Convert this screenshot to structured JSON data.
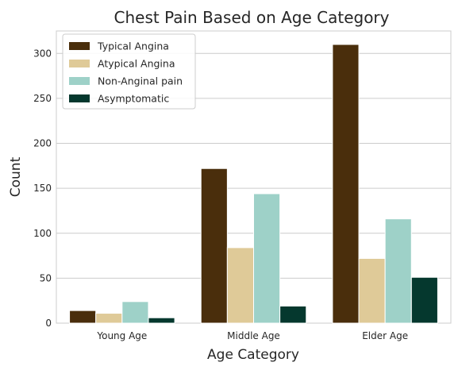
{
  "chart_data": {
    "type": "bar",
    "title": "Chest Pain Based on Age Category",
    "xlabel": "Age Category",
    "ylabel": "Count",
    "categories": [
      "Young Age",
      "Middle Age",
      "Elder Age"
    ],
    "yticks": [
      0,
      50,
      100,
      150,
      200,
      250,
      300
    ],
    "ylim": [
      0,
      325
    ],
    "grid": true,
    "legend_position": "top-left",
    "series": [
      {
        "name": "Typical Angina",
        "color": "#4a2e0c",
        "values": [
          14,
          172,
          310
        ]
      },
      {
        "name": "Atypical Angina",
        "color": "#dfca98",
        "values": [
          11,
          84,
          72
        ]
      },
      {
        "name": "Non-Anginal pain",
        "color": "#9ed1c8",
        "values": [
          24,
          144,
          116
        ]
      },
      {
        "name": "Asymptomatic",
        "color": "#05382e",
        "values": [
          6,
          19,
          51
        ]
      }
    ]
  }
}
